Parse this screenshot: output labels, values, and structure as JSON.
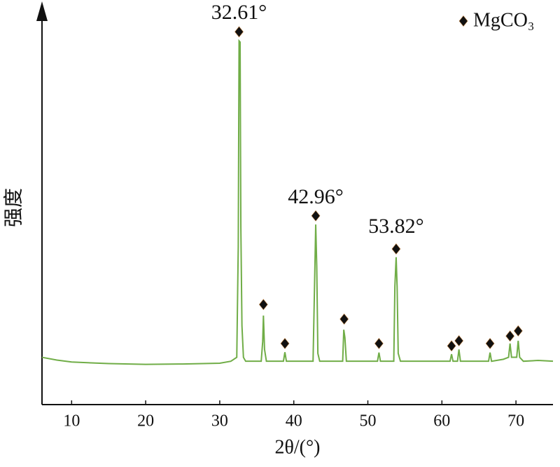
{
  "chart_data": {
    "type": "line",
    "xlabel": "2θ/(°)",
    "ylabel": "强度",
    "x": [
      6,
      8,
      10,
      15,
      20,
      25,
      30,
      31.5,
      32.3,
      32.5,
      32.61,
      32.75,
      32.85,
      33.0,
      33.2,
      33.5,
      35.6,
      35.8,
      35.9,
      36.05,
      36.3,
      38.6,
      38.8,
      39.0,
      42.6,
      42.8,
      42.96,
      43.1,
      43.25,
      43.5,
      46.6,
      46.75,
      46.9,
      47.1,
      51.3,
      51.5,
      51.7,
      53.5,
      53.65,
      53.82,
      53.95,
      54.1,
      54.4,
      61.1,
      61.3,
      61.5,
      62.1,
      62.3,
      62.5,
      66.3,
      66.5,
      66.7,
      68.3,
      69.0,
      69.2,
      69.4,
      70.1,
      70.3,
      70.5,
      71,
      73,
      75
    ],
    "values": [
      12,
      11.3,
      10.8,
      10.4,
      10.2,
      10.3,
      10.5,
      11,
      12,
      40,
      92.3,
      92,
      45,
      20,
      12,
      11,
      11,
      16,
      22.6,
      14,
      11,
      11,
      13.3,
      11,
      11,
      30,
      45.7,
      35,
      13,
      11,
      11,
      19,
      17,
      11,
      11,
      13.2,
      11,
      11,
      30,
      37.4,
      30,
      13,
      11,
      11,
      12.8,
      11,
      11,
      14,
      11,
      11,
      13.2,
      11,
      11.5,
      12,
      15.5,
      12,
      12,
      16.2,
      12,
      11,
      11.2,
      11
    ],
    "color": "#70ad47",
    "markers": {
      "name": "MgCO₃",
      "color": "#111111",
      "x": [
        32.61,
        35.9,
        38.8,
        42.96,
        46.8,
        51.5,
        53.82,
        61.3,
        62.3,
        66.5,
        69.2,
        70.3
      ],
      "y": [
        94.6,
        25.4,
        15.5,
        47.9,
        21.7,
        15.5,
        39.5,
        14.9,
        16.2,
        15.5,
        17.4,
        18.7
      ]
    },
    "annotations": [
      {
        "text": "32.61°",
        "x": 32.61,
        "y": 99.1
      },
      {
        "text": "42.96°",
        "x": 42.96,
        "y": 52.3
      },
      {
        "text": "53.82°",
        "x": 53.82,
        "y": 44.8
      }
    ],
    "xlim": [
      6,
      75
    ],
    "ylim": [
      0,
      100
    ],
    "xticks": [
      10,
      20,
      30,
      40,
      50,
      60,
      70
    ],
    "legend": "upper right"
  }
}
